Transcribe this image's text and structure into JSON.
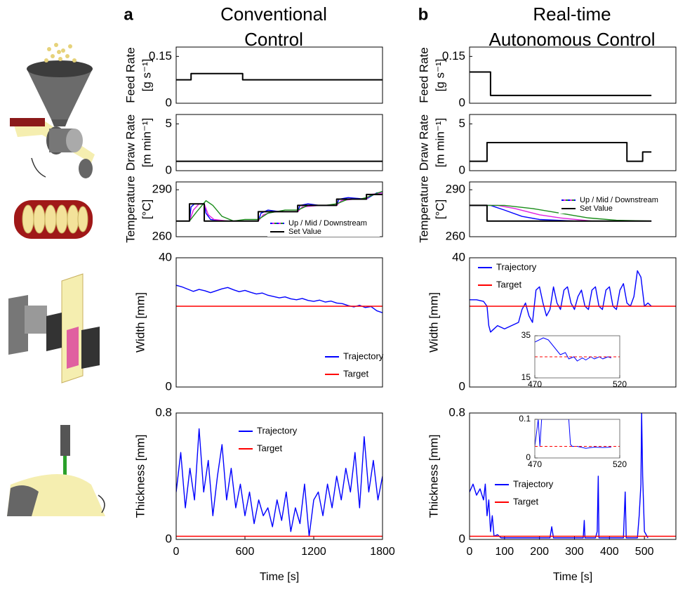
{
  "panels": [
    {
      "letter": "a",
      "title": [
        "Conventional",
        "Control"
      ]
    },
    {
      "letter": "b",
      "title": [
        "Real-time",
        "Autonomous Control"
      ]
    }
  ],
  "chart_data": [
    {
      "type": "line",
      "ylabel": [
        "Feed Rate",
        "[g s⁻¹]"
      ],
      "xlim": [
        0,
        1800
      ],
      "ylim": [
        0,
        0.18
      ],
      "yticks": [
        0,
        0.15
      ],
      "series": [
        {
          "color": "#000000",
          "x": [
            0,
            130,
            130,
            580,
            580,
            1800
          ],
          "values": [
            0.075,
            0.075,
            0.095,
            0.095,
            0.075,
            0.075
          ]
        }
      ]
    },
    {
      "type": "line",
      "ylabel": [
        "Draw Rate",
        "[m min⁻¹]"
      ],
      "xlim": [
        0,
        1800
      ],
      "ylim": [
        0,
        6
      ],
      "yticks": [
        0,
        5
      ],
      "series": [
        {
          "color": "#000000",
          "x": [
            0,
            1800
          ],
          "values": [
            1,
            1
          ]
        }
      ]
    },
    {
      "type": "line",
      "ylabel": [
        "Temperature",
        "[°C]"
      ],
      "xlim": [
        0,
        1800
      ],
      "ylim": [
        260,
        295
      ],
      "yticks": [
        260,
        290
      ],
      "legend_loc": "lower right",
      "legend": [
        {
          "label": "Up / Mid / Downstream",
          "colors": [
            "#0000ff",
            "#e020e0",
            "#1a8c1a"
          ]
        },
        {
          "label": "Set Value",
          "colors": [
            "#000000"
          ]
        }
      ],
      "series": [
        {
          "color": "#0000ff",
          "x": [
            0,
            116,
            130,
            160,
            245,
            260,
            300,
            400,
            500,
            716,
            740,
            800,
            900,
            1060,
            1080,
            1150,
            1250,
            1400,
            1420,
            1500,
            1660,
            1680,
            1750,
            1800
          ],
          "values": [
            270,
            270,
            279,
            281,
            281,
            275,
            271,
            270,
            270,
            270,
            275,
            277,
            276,
            276,
            280,
            281,
            280,
            280,
            284,
            285,
            284,
            285,
            288,
            288
          ]
        },
        {
          "color": "#e020e0",
          "x": [
            0,
            116,
            150,
            200,
            245,
            280,
            330,
            450,
            716,
            760,
            850,
            1060,
            1100,
            1250,
            1400,
            1440,
            1550,
            1660,
            1700,
            1800
          ],
          "values": [
            270,
            270,
            277,
            281,
            281,
            274,
            271,
            270,
            270,
            274,
            276,
            276,
            279,
            280,
            280,
            283,
            284,
            284,
            287,
            288
          ]
        },
        {
          "color": "#1a8c1a",
          "x": [
            0,
            116,
            180,
            260,
            320,
            400,
            500,
            600,
            716,
            800,
            950,
            1060,
            1150,
            1300,
            1400,
            1500,
            1600,
            1660,
            1760,
            1800
          ],
          "values": [
            270,
            270,
            276,
            283,
            280,
            273,
            270,
            271,
            271,
            275,
            277,
            277,
            280,
            280,
            281,
            284,
            284,
            285,
            288,
            289
          ]
        },
        {
          "color": "#000000",
          "x": [
            0,
            116,
            116,
            245,
            245,
            716,
            716,
            1060,
            1060,
            1400,
            1400,
            1660,
            1660,
            1800
          ],
          "values": [
            270,
            270,
            281,
            281,
            270,
            270,
            276,
            276,
            280,
            280,
            284,
            284,
            287,
            287
          ]
        }
      ]
    },
    {
      "type": "line",
      "ylabel": [
        "Width [mm]"
      ],
      "xlim": [
        0,
        1800
      ],
      "ylim": [
        0,
        40
      ],
      "yticks": [
        0,
        40
      ],
      "legend_loc": "lower right",
      "series": [
        {
          "name": "Trajectory",
          "color": "#0000ff",
          "x": [
            0,
            50,
            100,
            150,
            200,
            250,
            300,
            350,
            400,
            450,
            500,
            550,
            600,
            650,
            700,
            750,
            800,
            850,
            900,
            950,
            1000,
            1050,
            1100,
            1150,
            1200,
            1250,
            1300,
            1350,
            1400,
            1450,
            1500,
            1550,
            1600,
            1650,
            1700,
            1750,
            1800
          ],
          "values": [
            31.5,
            31,
            30.3,
            29.6,
            30.2,
            29.8,
            29.2,
            29.8,
            30.4,
            30.8,
            30.1,
            29.5,
            29.9,
            29.3,
            28.8,
            29.1,
            28.4,
            28,
            27.6,
            27.9,
            27.3,
            27,
            27.4,
            26.8,
            26.5,
            26.9,
            26.3,
            26.6,
            26,
            25.8,
            25.2,
            24.8,
            25.3,
            24.6,
            24.9,
            23.6,
            23
          ]
        },
        {
          "name": "Target",
          "color": "#ff0000",
          "x": [
            0,
            1800
          ],
          "values": [
            25,
            25
          ]
        }
      ]
    },
    {
      "type": "line",
      "ylabel": [
        "Thickness [mm]"
      ],
      "xlabel": "Time [s]",
      "xlim": [
        0,
        1800
      ],
      "ylim": [
        0,
        0.8
      ],
      "yticks": [
        0,
        0.8
      ],
      "xticks": [
        0,
        600,
        1200,
        1800
      ],
      "legend_loc": "upper center",
      "series": [
        {
          "name": "Trajectory",
          "color": "#0000ff",
          "x": [
            0,
            40,
            80,
            120,
            160,
            200,
            240,
            280,
            320,
            360,
            400,
            440,
            480,
            520,
            560,
            600,
            640,
            680,
            720,
            760,
            800,
            840,
            880,
            920,
            960,
            1000,
            1040,
            1080,
            1120,
            1160,
            1200,
            1240,
            1280,
            1320,
            1360,
            1400,
            1440,
            1480,
            1520,
            1560,
            1600,
            1640,
            1680,
            1720,
            1760,
            1800
          ],
          "values": [
            0.3,
            0.55,
            0.2,
            0.45,
            0.25,
            0.7,
            0.3,
            0.5,
            0.15,
            0.4,
            0.6,
            0.25,
            0.45,
            0.2,
            0.35,
            0.15,
            0.3,
            0.1,
            0.25,
            0.15,
            0.2,
            0.08,
            0.25,
            0.12,
            0.3,
            0.05,
            0.2,
            0.1,
            0.35,
            0.02,
            0.25,
            0.3,
            0.15,
            0.35,
            0.2,
            0.4,
            0.25,
            0.45,
            0.3,
            0.55,
            0.2,
            0.65,
            0.3,
            0.5,
            0.25,
            0.4
          ]
        },
        {
          "name": "Target",
          "color": "#ff0000",
          "x": [
            0,
            1800
          ],
          "values": [
            0.02,
            0.02
          ]
        }
      ]
    },
    {
      "type": "line",
      "ylabel": [
        "Feed Rate",
        "[g s⁻¹]"
      ],
      "xlim": [
        0,
        590
      ],
      "ylim": [
        0,
        0.18
      ],
      "yticks": [
        0,
        0.15
      ],
      "series": [
        {
          "color": "#000000",
          "x": [
            0,
            60,
            60,
            520
          ],
          "values": [
            0.1,
            0.1,
            0.025,
            0.025
          ]
        }
      ]
    },
    {
      "type": "line",
      "ylabel": [
        "Draw Rate",
        "[m min⁻¹]"
      ],
      "xlim": [
        0,
        590
      ],
      "ylim": [
        0,
        6
      ],
      "yticks": [
        0,
        5
      ],
      "series": [
        {
          "color": "#000000",
          "x": [
            0,
            50,
            50,
            450,
            450,
            495,
            495,
            520
          ],
          "values": [
            1,
            1,
            3,
            3,
            1,
            1,
            2,
            2
          ]
        }
      ]
    },
    {
      "type": "line",
      "ylabel": [
        "Temperature",
        "[°C]"
      ],
      "xlim": [
        0,
        590
      ],
      "ylim": [
        260,
        295
      ],
      "yticks": [
        260,
        290
      ],
      "legend_loc": "upper right",
      "legend": [
        {
          "label": "Up / Mid / Downstream",
          "colors": [
            "#0000ff",
            "#e020e0",
            "#1a8c1a"
          ]
        },
        {
          "label": "Set Value",
          "colors": [
            "#000000"
          ]
        }
      ],
      "series": [
        {
          "color": "#0000ff",
          "x": [
            0,
            60,
            100,
            150,
            200,
            300,
            520
          ],
          "values": [
            280,
            280,
            277,
            273,
            271,
            270,
            270
          ]
        },
        {
          "color": "#e020e0",
          "x": [
            0,
            80,
            130,
            200,
            260,
            350,
            520
          ],
          "values": [
            280,
            280,
            278,
            274,
            272,
            270,
            270
          ]
        },
        {
          "color": "#1a8c1a",
          "x": [
            0,
            100,
            180,
            260,
            340,
            420,
            520
          ],
          "values": [
            280,
            280,
            278,
            275,
            272,
            270.5,
            270
          ]
        },
        {
          "color": "#000000",
          "x": [
            0,
            50,
            50,
            520
          ],
          "values": [
            280,
            280,
            270,
            270
          ]
        }
      ]
    },
    {
      "type": "line",
      "ylabel": [
        "Width [mm]"
      ],
      "xlim": [
        0,
        590
      ],
      "ylim": [
        0,
        40
      ],
      "yticks": [
        0,
        40
      ],
      "legend_loc": "upper left",
      "series": [
        {
          "name": "Trajectory",
          "color": "#0000ff",
          "x": [
            0,
            20,
            40,
            50,
            55,
            60,
            70,
            80,
            100,
            120,
            140,
            150,
            160,
            170,
            180,
            190,
            200,
            210,
            220,
            230,
            240,
            250,
            260,
            270,
            280,
            290,
            300,
            310,
            320,
            330,
            340,
            350,
            360,
            370,
            380,
            390,
            400,
            410,
            420,
            430,
            440,
            450,
            460,
            470,
            480,
            490,
            500,
            510,
            520
          ],
          "values": [
            27,
            27,
            26.5,
            25,
            19,
            17,
            18,
            19,
            18,
            19,
            20,
            24,
            26,
            22,
            20,
            30,
            31,
            26,
            22,
            24,
            31,
            26,
            24,
            30,
            31,
            26,
            24,
            28,
            30,
            25,
            24,
            30,
            31,
            25,
            24,
            30,
            31,
            25,
            24,
            30,
            32,
            26,
            25,
            28,
            36,
            34,
            25,
            26,
            25
          ]
        },
        {
          "name": "Target",
          "color": "#ff0000",
          "x": [
            0,
            590
          ],
          "values": [
            25,
            25
          ]
        }
      ]
    },
    {
      "type": "line",
      "ylabel": [
        "Thickness [mm]"
      ],
      "xlabel": "Time [s]",
      "xlim": [
        0,
        590
      ],
      "ylim": [
        0,
        0.8
      ],
      "yticks": [
        0,
        0.8
      ],
      "xticks": [
        0,
        100,
        200,
        300,
        400,
        500
      ],
      "legend_loc": "center left",
      "series": [
        {
          "name": "Trajectory",
          "color": "#0000ff",
          "x": [
            0,
            10,
            20,
            30,
            40,
            45,
            50,
            55,
            60,
            65,
            70,
            80,
            90,
            100,
            150,
            230,
            235,
            240,
            300,
            325,
            328,
            330,
            360,
            365,
            368,
            370,
            440,
            445,
            448,
            450,
            480,
            485,
            490,
            492,
            495,
            500,
            510
          ],
          "values": [
            0.3,
            0.35,
            0.28,
            0.32,
            0.25,
            0.35,
            0.15,
            0.25,
            0.05,
            0.15,
            0.02,
            0.03,
            0.01,
            0.01,
            0.01,
            0.01,
            0.08,
            0.01,
            0.01,
            0.01,
            0.12,
            0.01,
            0.01,
            0.05,
            0.4,
            0.01,
            0.01,
            0.3,
            0.01,
            0.01,
            0.01,
            0.15,
            0.35,
            0.8,
            0.4,
            0.05,
            0.01
          ]
        },
        {
          "name": "Target",
          "color": "#ff0000",
          "x": [
            0,
            590
          ],
          "values": [
            0.02,
            0.02
          ]
        }
      ]
    },
    {
      "type": "line",
      "xlim": [
        470,
        520
      ],
      "ylim": [
        15,
        35
      ],
      "yticks": [
        15,
        35
      ],
      "xticks": [
        470,
        520
      ],
      "series": [
        {
          "color": "#0000ff",
          "x": [
            470,
            475,
            478,
            480,
            483,
            485,
            488,
            490,
            493,
            495,
            498,
            500,
            503,
            505,
            508,
            510,
            513,
            515
          ],
          "values": [
            32,
            34,
            33,
            31,
            28,
            26,
            27,
            24,
            25,
            23,
            24.5,
            23.5,
            25,
            24,
            25,
            24,
            25,
            24.5
          ]
        },
        {
          "color": "#ff0000",
          "dash": true,
          "x": [
            470,
            520
          ],
          "values": [
            25,
            25
          ]
        }
      ]
    },
    {
      "type": "line",
      "xlim": [
        470,
        520
      ],
      "ylim": [
        0,
        0.1
      ],
      "yticks": [
        0,
        0.1
      ],
      "xticks": [
        470,
        520
      ],
      "series": [
        {
          "color": "#0000ff",
          "x": [
            470,
            472,
            473,
            474,
            475,
            476,
            480,
            490,
            491,
            492,
            495,
            500,
            505,
            510,
            515
          ],
          "values": [
            0.03,
            0.1,
            0.03,
            0.1,
            0.1,
            0.1,
            0.1,
            0.1,
            0.035,
            0.03,
            0.03,
            0.025,
            0.028,
            0.027,
            0.028
          ]
        },
        {
          "color": "#ff0000",
          "dash": true,
          "x": [
            470,
            520
          ],
          "values": [
            0.03,
            0.03
          ]
        }
      ]
    }
  ]
}
